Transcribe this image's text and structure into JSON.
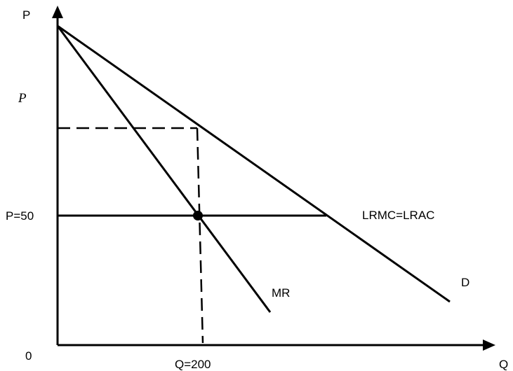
{
  "labels": {
    "y_axis": "P",
    "x_axis": "Q",
    "origin": "0",
    "price_monopoly": "P",
    "price_50": "P=50",
    "quantity_200": "Q=200",
    "cost_curve": "LRMC=LRAC",
    "marginal_revenue": "MR",
    "demand": "D"
  }
}
